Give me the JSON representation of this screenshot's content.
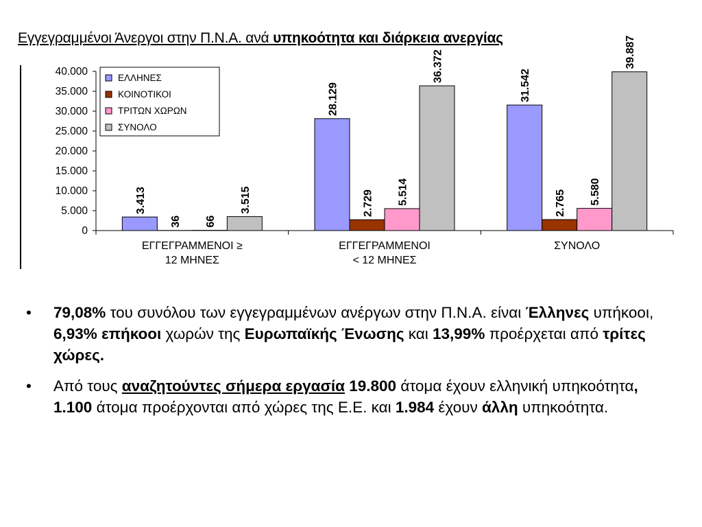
{
  "title": {
    "part1": "Εγγεγραμμένοι Άνεργοι στην Π.Ν.Α. ανά ",
    "part2": "υπηκοότητα  και διάρκεια ανεργίας"
  },
  "chart_data": {
    "type": "bar",
    "categories": [
      [
        "ΕΓΓΕΓΡΑΜΜΕΝΟΙ    ≥",
        "12 ΜΗΝΕΣ"
      ],
      [
        "ΕΓΓΕΓΡΑΜΜΕΝΟΙ",
        "< 12 ΜΗΝΕΣ"
      ],
      [
        "ΣΥΝΟΛΟ"
      ]
    ],
    "series": [
      {
        "name": "ΕΛΛΗΝΕΣ",
        "color": "#9999ff",
        "values": [
          3413,
          28129,
          31542
        ],
        "labels": [
          "3.413",
          "28.129",
          "31.542"
        ]
      },
      {
        "name": "ΚΟΙΝΟΤΙΚΟΙ",
        "color": "#993300",
        "values": [
          36,
          2729,
          2765
        ],
        "labels": [
          "36",
          "2.729",
          "2.765"
        ]
      },
      {
        "name": "ΤΡΙΤΩΝ ΧΩΡΩΝ",
        "color": "#ff99cc",
        "values": [
          66,
          5514,
          5580
        ],
        "labels": [
          "66",
          "5.514",
          "5.580"
        ]
      },
      {
        "name": "ΣΥΝΟΛΟ",
        "color": "#c0c0c0",
        "values": [
          3515,
          36372,
          39887
        ],
        "labels": [
          "3.515",
          "36.372",
          "39.887"
        ]
      }
    ],
    "ylim": [
      0,
      40000
    ],
    "yticks": [
      "0",
      "5.000",
      "10.000",
      "15.000",
      "20.000",
      "25.000",
      "30.000",
      "35.000",
      "40.000"
    ],
    "legend": "top-left",
    "grid": false
  },
  "bullets": {
    "b1": {
      "s1": "79,08%",
      "s2": " του συνόλου των εγγεγραμμένων ανέργων στην Π.Ν.Α. είναι ",
      "s3": "Έλληνες",
      "s4": " υπήκοοι, ",
      "s5": "6,93% επήκοοι",
      "s6": " χωρών της ",
      "s7": "Ευρωπαϊκής Ένωσης",
      "s8": " και ",
      "s9": "13,99%",
      "s10": " προέρχεται από ",
      "s11": "τρίτες χώρες."
    },
    "b2": {
      "s1": "Από τους ",
      "s2": "αναζητούντες σήμερα εργασία",
      "s3": " ",
      "s4": "19.800",
      "s5": " άτομα έχουν ελληνική υπηκοότητα",
      "s6": ", 1.100",
      "s7": " άτομα προέρχονται από χώρες της Ε.Ε. και ",
      "s8": "1.984",
      "s9": " έχουν ",
      "s10": "άλλη",
      "s11": " υπηκοότητα."
    }
  }
}
